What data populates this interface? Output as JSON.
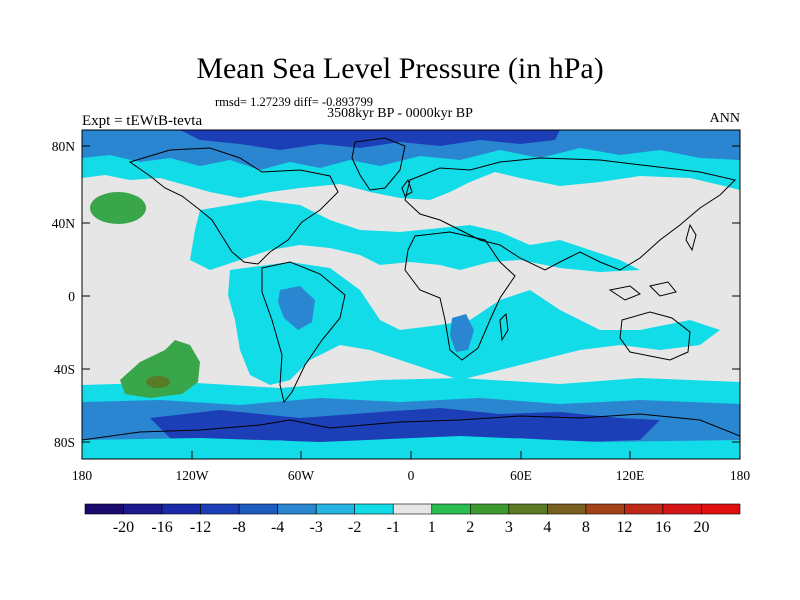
{
  "title": "Mean Sea Level Pressure (in hPa)",
  "stats": "rmsd= 1.27239  diff= -0.893799",
  "subtitle": "3508kyr BP - 0000kyr BP",
  "left_label": "Expt = tEWtB-tevta",
  "right_label": "ANN",
  "lat_labels": [
    "80N",
    "40N",
    "0",
    "40S",
    "80S"
  ],
  "lon_labels": [
    "180",
    "120W",
    "60W",
    "0",
    "60E",
    "120E",
    "180"
  ],
  "colorbar": {
    "labels": [
      "-20",
      "-16",
      "-12",
      "-8",
      "-4",
      "-3",
      "-2",
      "-1",
      "1",
      "2",
      "3",
      "4",
      "8",
      "12",
      "16",
      "20"
    ],
    "colors": [
      "#1a0a6e",
      "#1b1890",
      "#1a2aa8",
      "#1c3fb8",
      "#1e5cc2",
      "#2a86d0",
      "#27b4e2",
      "#12dce8",
      "#e6e6e6",
      "#2bbd4f",
      "#3d9a31",
      "#5a7a26",
      "#7a6020",
      "#a34218",
      "#c0281a",
      "#d61616",
      "#e01010"
    ]
  },
  "map_colors": {
    "neutral": "#e6e6e6",
    "light_cyan": "#12dce8",
    "mid_blue": "#2a86d0",
    "deep_blue": "#1c3fb8",
    "green": "#3aa64a",
    "dark_green": "#5a7a26"
  }
}
